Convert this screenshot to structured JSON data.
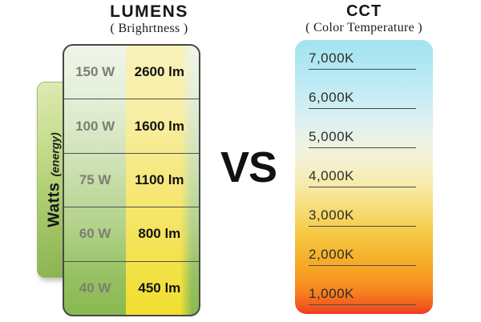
{
  "left_panel": {
    "title": "LUMENS",
    "subtitle": "( Brighrtness )",
    "axis": {
      "label": "Watts",
      "sublabel": "(energy)"
    },
    "rows": [
      {
        "watts": "150 W",
        "lumens": "2600 lm"
      },
      {
        "watts": "100 W",
        "lumens": "1600 lm"
      },
      {
        "watts": "75 W",
        "lumens": "1100 lm"
      },
      {
        "watts": "60 W",
        "lumens": "800 lm"
      },
      {
        "watts": "40 W",
        "lumens": "450 lm"
      }
    ]
  },
  "vs_label": "VS",
  "right_panel": {
    "title": "CCT",
    "subtitle": "( Color Temperature )",
    "scale_labels": [
      "7,000K",
      "6,000K",
      "5,000K",
      "4,000K",
      "3,000K",
      "2,000K",
      "1,000K"
    ]
  },
  "colors": {
    "watts_bar_top": "#dcebb0",
    "watts_bar_bottom": "#8bb251",
    "table_green_top": "#f0f5eb",
    "table_green_bottom": "#89b94f",
    "lumens_yellow_top": "#f9f2ba",
    "lumens_yellow_bottom": "#f0de2d",
    "cct_top_cyan": "#a2e4f1",
    "cct_mid_yellow": "#f6dc75",
    "cct_bottom_red": "#ee3b22",
    "watts_text": "#7c7f74",
    "lumens_text": "#131313",
    "separator_line": "#4b4b4b"
  }
}
